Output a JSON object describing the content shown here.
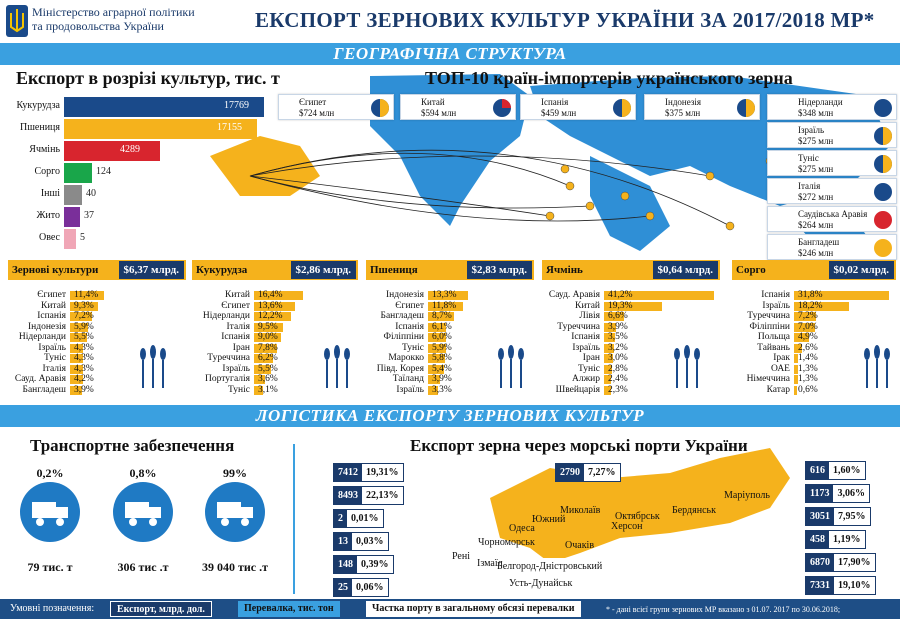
{
  "header": {
    "ministry": [
      "Міністерство аграрної політики",
      "та продовольства України"
    ],
    "title": "ЕКСПОРТ ЗЕРНОВИХ КУЛЬТУР УКРАЇНИ ЗА 2017/2018 МР*"
  },
  "bands": {
    "geo": "ГЕОГРАФІЧНА СТРУКТУРА",
    "log": "ЛОГІСТИКА ЕКСПОРТУ ЗЕРНОВИХ КУЛЬТУР"
  },
  "crops": {
    "title": "Експорт в розрізі культур, тис. т",
    "items": [
      {
        "label": "Кукурудза",
        "value": "17769",
        "frac": 1.0,
        "color": "#1a4a8a"
      },
      {
        "label": "Пшениця",
        "value": "17155",
        "frac": 0.965,
        "color": "#f5b21c"
      },
      {
        "label": "Ячмінь",
        "value": "4289",
        "frac": 0.48,
        "color": "#d8252e"
      },
      {
        "label": "Сорго",
        "value": "124",
        "frac": 0.14,
        "color": "#19a64a"
      },
      {
        "label": "Інші",
        "value": "40",
        "frac": 0.09,
        "color": "#8a8a8a"
      },
      {
        "label": "Жито",
        "value": "37",
        "frac": 0.08,
        "color": "#7a2f9a"
      },
      {
        "label": "Овес",
        "value": "5",
        "frac": 0.06,
        "color": "#f0a6b6"
      }
    ]
  },
  "top10": {
    "title": "ТОП-10 країн-імпортерів українського зерна",
    "items": [
      {
        "name": "Єгипет",
        "amount": "$724 млн",
        "share": 0.5
      },
      {
        "name": "Китай",
        "amount": "$594 млн",
        "share": 0.25
      },
      {
        "name": "Іспанія",
        "amount": "$459 млн",
        "share": 0.5
      },
      {
        "name": "Індонезія",
        "amount": "$375 млн",
        "share": 0.5
      },
      {
        "name": "Нідерланди",
        "amount": "$348 млн",
        "share": 0.0
      },
      {
        "name": "Ізраїль",
        "amount": "$275 млн",
        "share": 0.5
      },
      {
        "name": "Туніс",
        "amount": "$275 млн",
        "share": 0.5
      },
      {
        "name": "Італія",
        "amount": "$272 млн",
        "share": 0.0
      },
      {
        "name": "Саудівська Аравія",
        "amount": "$264 млн",
        "share": 1.0
      },
      {
        "name": "Бангладеш",
        "amount": "$246 млн",
        "share": 1.0
      }
    ]
  },
  "summary": [
    {
      "name": "Зернові культури",
      "value": "$6,37 млрд."
    },
    {
      "name": "Кукурудза",
      "value": "$2,86 млрд."
    },
    {
      "name": "Пшениця",
      "value": "$2,83 млрд."
    },
    {
      "name": "Ячмінь",
      "value": "$0,64 млрд."
    },
    {
      "name": "Сорго",
      "value": "$0,02 млрд."
    }
  ],
  "tables": [
    [
      [
        "Єгипет",
        "11,4%"
      ],
      [
        "Китай",
        "9,3%"
      ],
      [
        "Іспанія",
        "7,2%"
      ],
      [
        "Індонезія",
        "5,9%"
      ],
      [
        "Нідерланди",
        "5,5%"
      ],
      [
        "Ізраїль",
        "4,3%"
      ],
      [
        "Туніс",
        "4,3%"
      ],
      [
        "Італія",
        "4,3%"
      ],
      [
        "Сауд. Аравія",
        "4,2%"
      ],
      [
        "Бангладеш",
        "3,9%"
      ]
    ],
    [
      [
        "Китай",
        "16,4%"
      ],
      [
        "Єгипет",
        "13,6%"
      ],
      [
        "Нідерланди",
        "12,2%"
      ],
      [
        "Італія",
        "9,5%"
      ],
      [
        "Іспанія",
        "9,0%"
      ],
      [
        "Іран",
        "7,8%"
      ],
      [
        "Туреччина",
        "6,2%"
      ],
      [
        "Ізраїль",
        "5,5%"
      ],
      [
        "Португалія",
        "3,6%"
      ],
      [
        "Туніс",
        "3,1%"
      ]
    ],
    [
      [
        "Індонезія",
        "13,3%"
      ],
      [
        "Єгипет",
        "11,8%"
      ],
      [
        "Бангладеш",
        "8,7%"
      ],
      [
        "Іспанія",
        "6,1%"
      ],
      [
        "Філіппіни",
        "6,0%"
      ],
      [
        "Туніс",
        "5,9%"
      ],
      [
        "Марокко",
        "5,8%"
      ],
      [
        "Півд. Корея",
        "5,4%"
      ],
      [
        "Таїланд",
        "3,9%"
      ],
      [
        "Ізраїль",
        "3,3%"
      ]
    ],
    [
      [
        "Сауд. Аравія",
        "41,2%"
      ],
      [
        "Китай",
        "19,3%"
      ],
      [
        "Лівія",
        "6,6%"
      ],
      [
        "Туреччина",
        "3,9%"
      ],
      [
        "Іспанія",
        "3,5%"
      ],
      [
        "Ізраїль",
        "3,2%"
      ],
      [
        "Іран",
        "3,0%"
      ],
      [
        "Туніс",
        "2,8%"
      ],
      [
        "Алжир",
        "2,4%"
      ],
      [
        "Швейцарія",
        "2,3%"
      ]
    ],
    [
      [
        "Іспанія",
        "31,8%"
      ],
      [
        "Ізраїль",
        "18,2%"
      ],
      [
        "Туреччина",
        "7,2%"
      ],
      [
        "Філіппіни",
        "7,0%"
      ],
      [
        "Польща",
        "4,9%"
      ],
      [
        "Тайвань",
        "2,6%"
      ],
      [
        "Ірак",
        "1,4%"
      ],
      [
        "ОАЕ",
        "1,3%"
      ],
      [
        "Німеччина",
        "1,3%"
      ],
      [
        "Катар",
        "0,6%"
      ]
    ]
  ],
  "transport": {
    "title": "Транспортне забезпечення",
    "items": [
      {
        "pct": "0,2%",
        "tons": "79 тис. т",
        "icon": "truck-icon"
      },
      {
        "pct": "0,8%",
        "tons": "306 тис .т",
        "icon": "train-icon"
      },
      {
        "pct": "99%",
        "tons": "39 040 тис .т",
        "icon": "ship-icon"
      }
    ]
  },
  "ports": {
    "title": "Експорт зерна через морські порти України",
    "left": [
      [
        "7412",
        "19,31%"
      ],
      [
        "8493",
        "22,13%"
      ],
      [
        "2",
        "0,01%"
      ],
      [
        "13",
        "0,03%"
      ],
      [
        "148",
        "0,39%"
      ],
      [
        "25",
        "0,06%"
      ]
    ],
    "right": [
      [
        "616",
        "1,60%"
      ],
      [
        "1173",
        "3,06%"
      ],
      [
        "3051",
        "7,95%"
      ],
      [
        "458",
        "1,19%"
      ],
      [
        "6870",
        "17,90%"
      ],
      [
        "7331",
        "19,10%"
      ]
    ],
    "top": [
      "2790",
      "7,27%"
    ],
    "cities": [
      "Маріуполь",
      "Бердянськ",
      "Октябрськ",
      "Херсон",
      "Миколаїв",
      "Южний",
      "Одеса",
      "Чорноморськ",
      "Очаків",
      "Рені",
      "Ізмаїл",
      "Белгород-Дністровський",
      "Усть-Дунайськ"
    ]
  },
  "legend": {
    "title": "Умовні позначення:",
    "export": "Експорт, млрд. дол.",
    "transship": "Перевалка, тис. тон",
    "share": "Частка порту в загальному обсязі перевалки",
    "note": "* - дані всієї групи зернових МР вказано з 01.07. 2017 по 30.06.2018;"
  },
  "colors": {
    "navy": "#1a3a6a",
    "blue": "#3aa0e0",
    "gold": "#f5b21c",
    "map": "#2f8fd6"
  }
}
